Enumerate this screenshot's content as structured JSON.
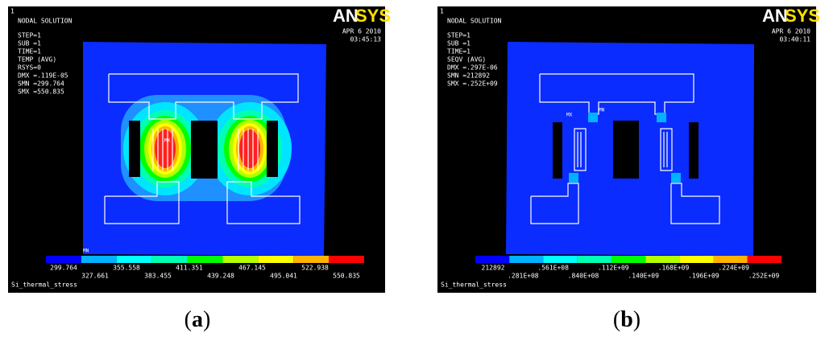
{
  "panels": [
    {
      "id_label": "1",
      "title": "NODAL SOLUTION",
      "info": [
        "STEP=1",
        "SUB =1",
        "TIME=1",
        "TEMP      (AVG)",
        "RSYS=0",
        "DMX =.119E-05",
        "SMN =299.764",
        "SMX =550.835"
      ],
      "logo": [
        "AN",
        "SYS"
      ],
      "date": "APR  6 2010",
      "time": "03:45:13",
      "markers": [
        "MN",
        "MX"
      ],
      "legend_labels": [
        "299.764",
        "327.661",
        "355.558",
        "383.455",
        "411.351",
        "439.248",
        "467.145",
        "495.041",
        "522.938",
        "550.835"
      ],
      "footer": "Si_thermal_stress",
      "caption": [
        "(",
        "a",
        ")"
      ]
    },
    {
      "id_label": "1",
      "title": "NODAL SOLUTION",
      "info": [
        "STEP=1",
        "SUB =1",
        "TIME=1",
        "SEQV      (AVG)",
        "DMX =.297E-06",
        "SMN =212892",
        "SMX =.252E+09"
      ],
      "logo": [
        "AN",
        "SYS"
      ],
      "date": "APR  6 2010",
      "time": "03:40:11",
      "markers": [
        "MN",
        "MX"
      ],
      "legend_labels": [
        "212892",
        ".281E+08",
        ".561E+08",
        ".840E+08",
        ".112E+09",
        ".140E+09",
        ".168E+09",
        ".196E+09",
        ".224E+09",
        ".252E+09"
      ],
      "footer": "Si_thermal_stress",
      "caption": [
        "(",
        "b",
        ")"
      ]
    }
  ]
}
